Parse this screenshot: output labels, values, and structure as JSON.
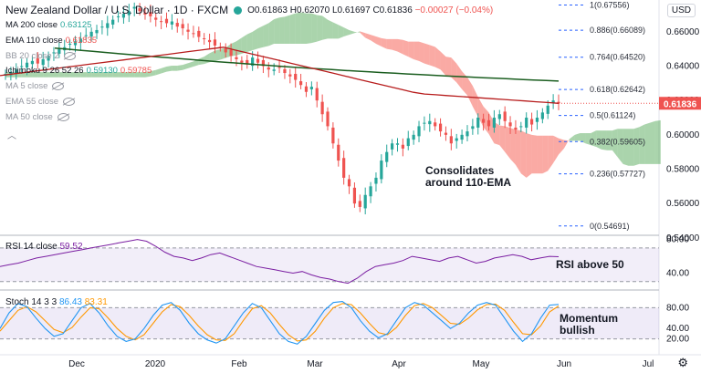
{
  "header": {
    "title": "New Zealand Dollar / U.S. Dollar · 1D · FXCM",
    "ohlc": {
      "o": "O0.61863",
      "h": "H0.62070",
      "l": "L0.61697",
      "c": "C0.61836",
      "chg": "−0.00027 (−0.04%)"
    }
  },
  "legend": {
    "ma200": {
      "label": "MA 200 close",
      "value": "0.63125",
      "color": "#26a69a"
    },
    "ema110": {
      "label": "EMA 110 close",
      "value": "0.61835",
      "color": "#ef5350"
    },
    "bb": {
      "label": "BB 20 close 2"
    },
    "ichimoku": {
      "label": "Ichimoku 9 26 52 26",
      "v1": "0.59130",
      "v2": "0.59785",
      "c1": "#26a69a",
      "c2": "#ef5350"
    },
    "ma5": {
      "label": "MA 5 close"
    },
    "ema55": {
      "label": "EMA 55 close"
    },
    "ma50": {
      "label": "MA 50 close"
    }
  },
  "currency_button": "USD",
  "colors": {
    "up": "#26a69a",
    "down": "#ef5350",
    "ma200": "#1b5e20",
    "ema110": "#b71c1c",
    "rsi": "#7b1fa2",
    "stochK": "#2196f3",
    "stochD": "#ff9800",
    "fib": "#2962ff"
  },
  "chart_data": [
    {
      "type": "candlestick",
      "symbol": "NZDUSD",
      "x_ticks": [
        "Dec",
        "2020",
        "Feb",
        "Mar",
        "Apr",
        "May",
        "Jun",
        "Jul"
      ],
      "y_ticks": [
        "0.66000",
        "0.64000",
        "0.62000",
        "0.60000",
        "0.58000",
        "0.56000",
        "0.54000"
      ],
      "ylim": [
        0.5415,
        0.6785
      ],
      "last_price": "0.61836",
      "ohlc_close": [
        0.6355,
        0.6365,
        0.638,
        0.64,
        0.642,
        0.643,
        0.6415,
        0.644,
        0.646,
        0.648,
        0.65,
        0.651,
        0.653,
        0.6545,
        0.656,
        0.658,
        0.66,
        0.661,
        0.663,
        0.665,
        0.667,
        0.669,
        0.6705,
        0.672,
        0.6745,
        0.672,
        0.67,
        0.669,
        0.667,
        0.666,
        0.665,
        0.666,
        0.663,
        0.662,
        0.66,
        0.659,
        0.657,
        0.656,
        0.654,
        0.652,
        0.651,
        0.648,
        0.646,
        0.644,
        0.642,
        0.641,
        0.645,
        0.642,
        0.64,
        0.638,
        0.638,
        0.639,
        0.636,
        0.634,
        0.632,
        0.629,
        0.625,
        0.628,
        0.62,
        0.612,
        0.605,
        0.595,
        0.585,
        0.575,
        0.57,
        0.56,
        0.558,
        0.565,
        0.57,
        0.575,
        0.585,
        0.59,
        0.595,
        0.595,
        0.592,
        0.598,
        0.6,
        0.605,
        0.607,
        0.608,
        0.605,
        0.602,
        0.6,
        0.595,
        0.598,
        0.6,
        0.602,
        0.605,
        0.61,
        0.607,
        0.605,
        0.61,
        0.612,
        0.608,
        0.605,
        0.603,
        0.605,
        0.61,
        0.606,
        0.61,
        0.613,
        0.617,
        0.62,
        0.6183
      ],
      "ma200_start": 0.6505,
      "ma200_end": 0.6313,
      "ema110_last": 0.61835,
      "ichimoku_span_a_last": 0.5913,
      "ichimoku_span_b_last": 0.59785,
      "fibonacci": [
        {
          "level": "1",
          "price": 0.67556,
          "label": "1(0.67556)"
        },
        {
          "level": "0.886",
          "price": 0.66089,
          "label": "0.886(0.66089)"
        },
        {
          "level": "0.764",
          "price": 0.6452,
          "label": "0.764(0.64520)"
        },
        {
          "level": "0.618",
          "price": 0.62642,
          "label": "0.618(0.62642)"
        },
        {
          "level": "0.5",
          "price": 0.61124,
          "label": "0.5(0.61124)"
        },
        {
          "level": "0.382",
          "price": 0.59605,
          "label": "0.382(0.59605)"
        },
        {
          "level": "0.236",
          "price": 0.57727,
          "label": "0.236(0.57727)"
        },
        {
          "level": "0",
          "price": 0.54691,
          "label": "0(0.54691)"
        }
      ],
      "annotation": "Consolidates\naround 110-EMA"
    },
    {
      "type": "line",
      "name": "RSI 14 close",
      "value": "59.52",
      "y_ticks": [
        "80.00",
        "40.00"
      ],
      "ylim": [
        20,
        85
      ],
      "band": [
        30,
        70
      ],
      "values": [
        48,
        50,
        52,
        55,
        58,
        60,
        62,
        64,
        66,
        68,
        70,
        72,
        74,
        76,
        78,
        80,
        78,
        72,
        65,
        60,
        58,
        55,
        58,
        62,
        64,
        60,
        56,
        52,
        48,
        46,
        44,
        42,
        40,
        42,
        38,
        35,
        33,
        30,
        28,
        34,
        42,
        48,
        50,
        52,
        55,
        60,
        58,
        56,
        54,
        58,
        60,
        56,
        52,
        54,
        58,
        60,
        62,
        60,
        56,
        58,
        60,
        59.5
      ],
      "annotation": "RSI above 50"
    },
    {
      "type": "line",
      "name": "Stoch 14 3 3",
      "k": "86.43",
      "d": "83.31",
      "y_ticks": [
        "80.00",
        "40.00",
        "20.00"
      ],
      "ylim": [
        0,
        100
      ],
      "band": [
        20,
        80
      ],
      "k_values": [
        40,
        70,
        88,
        82,
        60,
        40,
        25,
        30,
        55,
        80,
        88,
        70,
        45,
        25,
        15,
        20,
        40,
        65,
        85,
        90,
        75,
        50,
        30,
        18,
        12,
        20,
        45,
        70,
        88,
        80,
        55,
        30,
        15,
        10,
        25,
        50,
        75,
        90,
        92,
        80,
        55,
        35,
        22,
        30,
        55,
        80,
        90,
        85,
        70,
        55,
        40,
        50,
        70,
        85,
        90,
        85,
        60,
        35,
        15,
        30,
        60,
        85,
        86.4
      ],
      "d_values": [
        35,
        55,
        75,
        82,
        72,
        55,
        38,
        32,
        42,
        62,
        80,
        78,
        60,
        40,
        25,
        18,
        28,
        50,
        72,
        86,
        82,
        65,
        45,
        28,
        18,
        17,
        30,
        55,
        78,
        84,
        70,
        48,
        28,
        16,
        18,
        35,
        60,
        80,
        88,
        86,
        70,
        50,
        32,
        28,
        42,
        65,
        84,
        88,
        80,
        65,
        50,
        48,
        60,
        76,
        86,
        87,
        75,
        52,
        30,
        28,
        45,
        72,
        83.3
      ],
      "annotation": "Momentum\nbullish"
    }
  ]
}
